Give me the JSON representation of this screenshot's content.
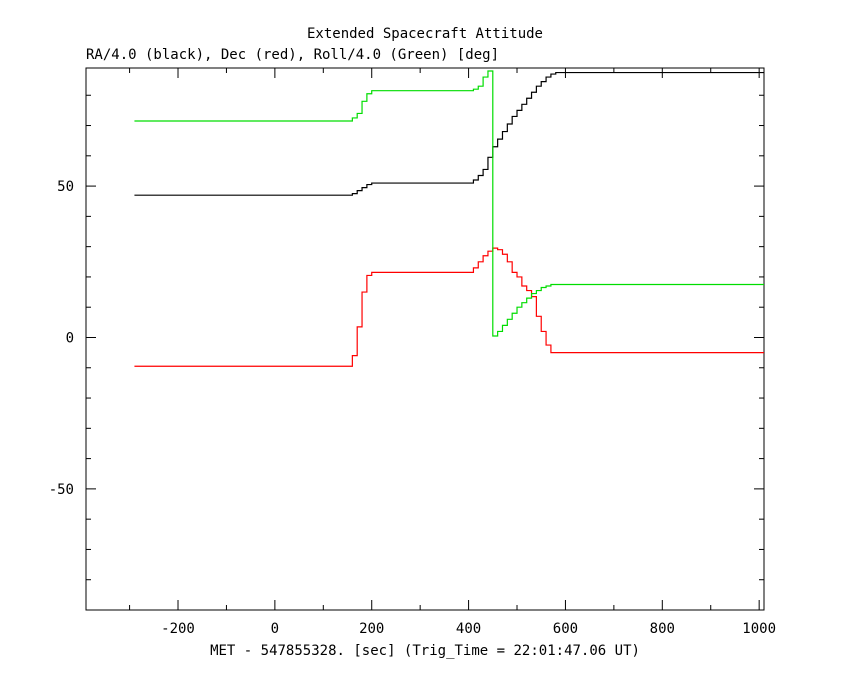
{
  "chart_data": {
    "type": "line",
    "title": "Extended Spacecraft Attitude",
    "subtitle": "RA/4.0 (black), Dec (red), Roll/4.0 (Green) [deg]",
    "xlabel": "MET - 547855328. [sec] (Trig_Time = 22:01:47.06 UT)",
    "ylabel": "",
    "xlim": [
      -390,
      1010
    ],
    "ylim": [
      -90,
      89
    ],
    "x_ticks": [
      -200,
      0,
      200,
      400,
      600,
      800,
      1000
    ],
    "x_tick_labels": [
      "-200",
      "0",
      "200",
      "400",
      "600",
      "800",
      "1000"
    ],
    "y_ticks": [
      -50,
      0,
      50
    ],
    "y_tick_labels": [
      "-50",
      "0",
      "50"
    ],
    "grid": false,
    "step": true,
    "series": [
      {
        "name": "RA/4.0",
        "color": "#000000",
        "points": [
          [
            -290,
            47
          ],
          [
            150,
            47
          ],
          [
            160,
            47.5
          ],
          [
            170,
            48.5
          ],
          [
            180,
            49.5
          ],
          [
            190,
            50.5
          ],
          [
            200,
            51
          ],
          [
            400,
            51
          ],
          [
            410,
            52
          ],
          [
            420,
            53.5
          ],
          [
            430,
            55.5
          ],
          [
            440,
            59.5
          ],
          [
            450,
            63
          ],
          [
            460,
            65.5
          ],
          [
            470,
            68
          ],
          [
            480,
            70.5
          ],
          [
            490,
            73
          ],
          [
            500,
            75
          ],
          [
            510,
            77
          ],
          [
            520,
            79
          ],
          [
            530,
            81
          ],
          [
            540,
            83
          ],
          [
            550,
            84.5
          ],
          [
            560,
            86
          ],
          [
            570,
            87
          ],
          [
            580,
            87.5
          ],
          [
            1010,
            87.5
          ]
        ]
      },
      {
        "name": "Dec",
        "color": "#ff0000",
        "points": [
          [
            -290,
            -9.5
          ],
          [
            150,
            -9.5
          ],
          [
            160,
            -6
          ],
          [
            170,
            3.5
          ],
          [
            180,
            15
          ],
          [
            190,
            20.5
          ],
          [
            200,
            21.5
          ],
          [
            400,
            21.5
          ],
          [
            410,
            23
          ],
          [
            420,
            25
          ],
          [
            430,
            27
          ],
          [
            440,
            28.5
          ],
          [
            450,
            29.5
          ],
          [
            460,
            29
          ],
          [
            470,
            27.5
          ],
          [
            480,
            25
          ],
          [
            490,
            21.5
          ],
          [
            500,
            20
          ],
          [
            510,
            17
          ],
          [
            520,
            15.5
          ],
          [
            530,
            13.5
          ],
          [
            540,
            7
          ],
          [
            550,
            2
          ],
          [
            560,
            -2.5
          ],
          [
            570,
            -5
          ],
          [
            1010,
            -5
          ]
        ]
      },
      {
        "name": "Roll/4.0",
        "color": "#00dd00",
        "points": [
          [
            -290,
            71.5
          ],
          [
            150,
            71.5
          ],
          [
            160,
            72.5
          ],
          [
            170,
            74
          ],
          [
            180,
            78
          ],
          [
            190,
            80.5
          ],
          [
            200,
            81.5
          ],
          [
            400,
            81.5
          ],
          [
            410,
            82
          ],
          [
            420,
            83
          ],
          [
            430,
            86
          ],
          [
            440,
            88
          ],
          [
            450,
            0.5
          ],
          [
            460,
            2
          ],
          [
            470,
            4
          ],
          [
            480,
            6
          ],
          [
            490,
            8
          ],
          [
            500,
            10
          ],
          [
            510,
            11.5
          ],
          [
            520,
            13
          ],
          [
            530,
            14.5
          ],
          [
            540,
            15.5
          ],
          [
            550,
            16.5
          ],
          [
            560,
            17
          ],
          [
            570,
            17.5
          ],
          [
            1010,
            17.5
          ]
        ]
      }
    ]
  }
}
